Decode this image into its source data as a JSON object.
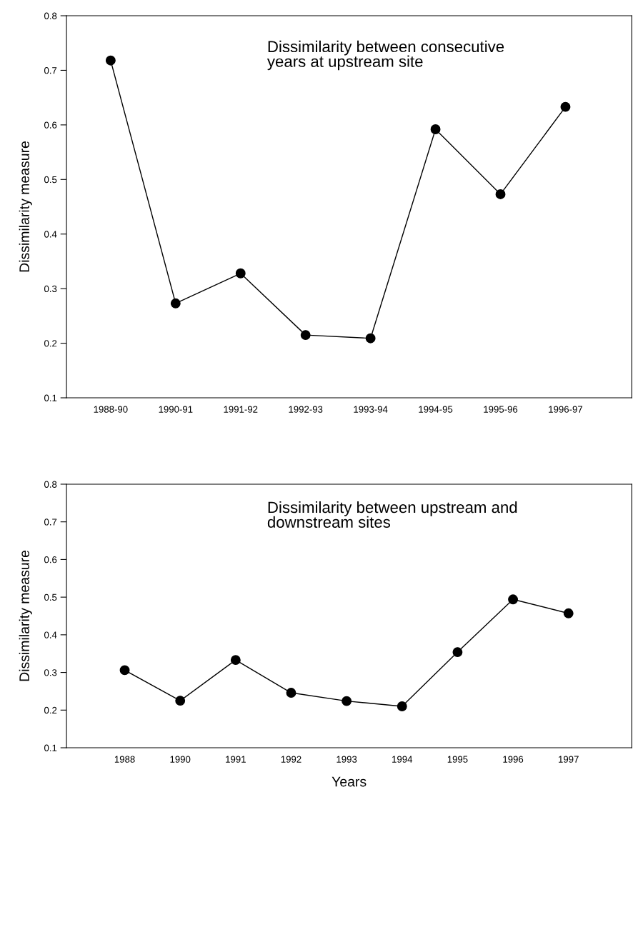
{
  "chart_data": [
    {
      "type": "line",
      "ylabel": "Dissimilarity measure",
      "annotations": [
        "Dissimilarity between consecutive\nyears at upstream site"
      ],
      "categories": [
        "1988-90",
        "1990-91",
        "1991-92",
        "1992-93",
        "1993-94",
        "1994-95",
        "1995-96",
        "1996-97"
      ],
      "series": [
        {
          "color": "#000000",
          "values": [
            0.718,
            0.273,
            0.328,
            0.215,
            0.209,
            0.592,
            0.473,
            0.633
          ]
        }
      ],
      "ylim": [
        0.1,
        0.8
      ],
      "yticks": [
        0.1,
        0.2,
        0.3,
        0.4,
        0.5,
        0.6,
        0.7,
        0.8
      ],
      "marker": "circle",
      "line_style": "solid",
      "grid": false,
      "legend": false
    },
    {
      "type": "line",
      "xlabel": "Years",
      "ylabel": "Dissimilarity measure",
      "annotations": [
        "Dissimilarity between upstream and\ndownstream sites"
      ],
      "categories": [
        "1988",
        "1990",
        "1991",
        "1992",
        "1993",
        "1994",
        "1995",
        "1996",
        "1997"
      ],
      "series": [
        {
          "color": "#000000",
          "values": [
            0.306,
            0.225,
            0.333,
            0.246,
            0.224,
            0.21,
            0.354,
            0.494,
            0.457
          ]
        }
      ],
      "ylim": [
        0.1,
        0.8
      ],
      "yticks": [
        0.1,
        0.2,
        0.3,
        0.4,
        0.5,
        0.6,
        0.7,
        0.8
      ],
      "marker": "circle",
      "line_style": "solid",
      "grid": false,
      "legend": false
    }
  ]
}
